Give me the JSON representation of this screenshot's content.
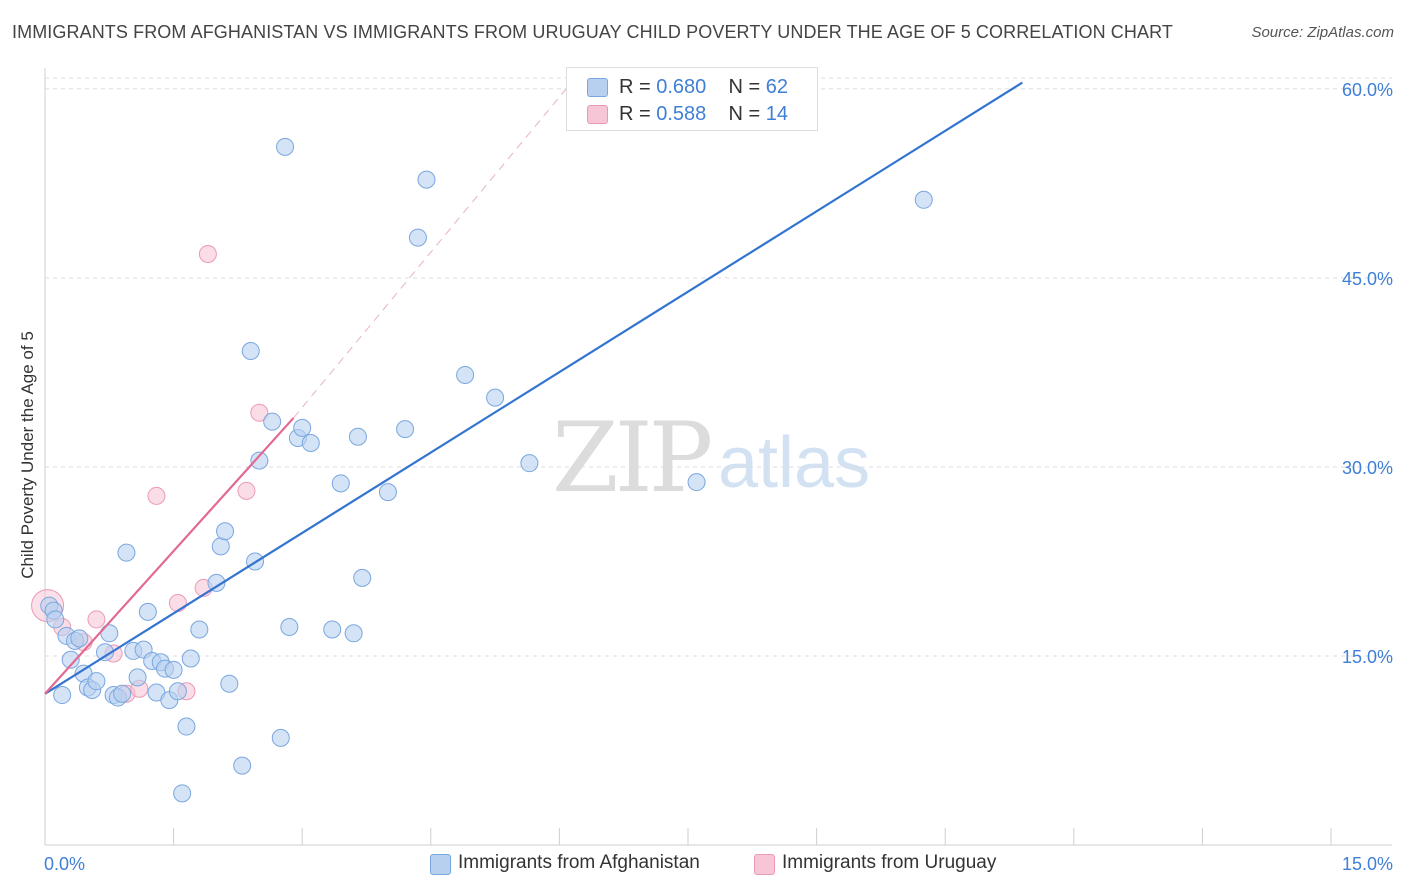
{
  "title": "IMMIGRANTS FROM AFGHANISTAN VS IMMIGRANTS FROM URUGUAY CHILD POVERTY UNDER THE AGE OF 5 CORRELATION CHART",
  "source": "Source: ZipAtlas.com",
  "watermark": {
    "zip": "ZIP",
    "atlas": "atlas"
  },
  "colors": {
    "blue_fill": "#b8d0f0",
    "blue_stroke": "#7aa7e0",
    "blue_line": "#3374d0",
    "pink_fill": "#f6c6d6",
    "pink_stroke": "#eb9ab5",
    "pink_line": "#e26a92",
    "axis_text": "#3f7fd6",
    "grid": "#dcdcdc"
  },
  "legend": [
    {
      "r_label": "R =",
      "r_value": "0.680",
      "n_label": "N =",
      "n_value": "62"
    },
    {
      "r_label": "R =",
      "r_value": "0.588",
      "n_label": "N =",
      "n_value": "14"
    }
  ],
  "bottom_legend": [
    "Immigrants from Afghanistan",
    "Immigrants from Uruguay"
  ],
  "chart_data": {
    "type": "scatter",
    "title": "IMMIGRANTS FROM AFGHANISTAN VS IMMIGRANTS FROM URUGUAY CHILD POVERTY UNDER THE AGE OF 5 CORRELATION CHART",
    "xlabel": "",
    "ylabel": "Child Poverty Under the Age of 5",
    "xlim": [
      0,
      15
    ],
    "ylim": [
      0,
      61.5
    ],
    "x_tick_labels": [
      "0.0%",
      "15.0%"
    ],
    "y_ticks": [
      15,
      30,
      45,
      60
    ],
    "y_tick_labels": [
      "15.0%",
      "30.0%",
      "45.0%",
      "60.0%"
    ],
    "series": [
      {
        "name": "Immigrants from Afghanistan",
        "R": 0.68,
        "N": 62,
        "trend": {
          "x": [
            0,
            11.4
          ],
          "y": [
            12,
            60.5
          ]
        },
        "points": [
          [
            0.05,
            19.0
          ],
          [
            0.1,
            18.6
          ],
          [
            0.12,
            17.9
          ],
          [
            0.2,
            11.9
          ],
          [
            0.25,
            16.6
          ],
          [
            0.3,
            14.7
          ],
          [
            0.35,
            16.2
          ],
          [
            0.4,
            16.4
          ],
          [
            0.45,
            13.6
          ],
          [
            0.5,
            12.5
          ],
          [
            0.55,
            12.3
          ],
          [
            0.6,
            13.0
          ],
          [
            0.7,
            15.3
          ],
          [
            0.75,
            16.8
          ],
          [
            0.8,
            11.9
          ],
          [
            0.85,
            11.7
          ],
          [
            0.95,
            23.2
          ],
          [
            0.9,
            12.0
          ],
          [
            1.03,
            15.4
          ],
          [
            1.08,
            13.3
          ],
          [
            1.15,
            15.5
          ],
          [
            1.2,
            18.5
          ],
          [
            1.25,
            14.6
          ],
          [
            1.3,
            12.1
          ],
          [
            1.35,
            14.5
          ],
          [
            1.45,
            11.5
          ],
          [
            1.4,
            14.0
          ],
          [
            1.5,
            13.9
          ],
          [
            1.55,
            12.2
          ],
          [
            1.65,
            9.4
          ],
          [
            1.7,
            14.8
          ],
          [
            1.8,
            17.1
          ],
          [
            1.6,
            4.1
          ],
          [
            2.0,
            20.8
          ],
          [
            2.05,
            23.7
          ],
          [
            2.1,
            24.9
          ],
          [
            2.15,
            12.8
          ],
          [
            2.3,
            6.3
          ],
          [
            2.4,
            39.2
          ],
          [
            2.45,
            22.5
          ],
          [
            2.5,
            30.5
          ],
          [
            2.65,
            33.6
          ],
          [
            2.75,
            8.5
          ],
          [
            2.8,
            55.4
          ],
          [
            2.85,
            17.3
          ],
          [
            2.95,
            32.3
          ],
          [
            3.0,
            33.1
          ],
          [
            3.1,
            31.9
          ],
          [
            3.35,
            17.1
          ],
          [
            3.45,
            28.7
          ],
          [
            3.6,
            16.8
          ],
          [
            3.65,
            32.4
          ],
          [
            3.7,
            21.2
          ],
          [
            4.0,
            28.0
          ],
          [
            4.2,
            33.0
          ],
          [
            4.35,
            48.2
          ],
          [
            4.45,
            52.8
          ],
          [
            4.9,
            37.3
          ],
          [
            5.25,
            35.5
          ],
          [
            5.65,
            30.3
          ],
          [
            7.6,
            28.8
          ],
          [
            10.25,
            51.2
          ]
        ]
      },
      {
        "name": "Immigrants from Uruguay",
        "R": 0.588,
        "N": 14,
        "trend": {
          "x": [
            0,
            2.9
          ],
          "y": [
            12,
            33.9
          ]
        },
        "trend_extension": {
          "x": [
            2.9,
            6.2
          ],
          "y": [
            33.9,
            61.0
          ]
        },
        "points": [
          [
            0.03,
            19.0
          ],
          [
            0.2,
            17.3
          ],
          [
            0.45,
            16.1
          ],
          [
            0.6,
            17.9
          ],
          [
            0.8,
            15.2
          ],
          [
            0.95,
            12.0
          ],
          [
            1.1,
            12.4
          ],
          [
            1.3,
            27.7
          ],
          [
            1.55,
            19.2
          ],
          [
            1.65,
            12.2
          ],
          [
            1.85,
            20.4
          ],
          [
            1.9,
            46.9
          ],
          [
            2.35,
            28.1
          ],
          [
            2.5,
            34.3
          ]
        ]
      }
    ]
  }
}
